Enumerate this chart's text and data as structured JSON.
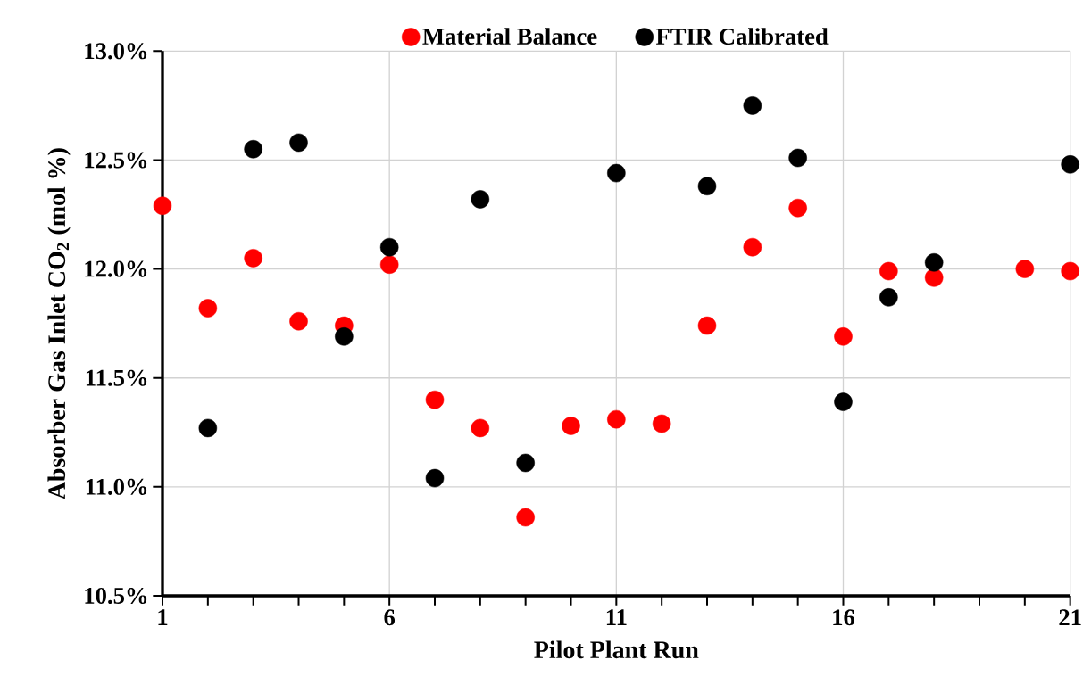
{
  "chart_data": {
    "type": "scatter",
    "xlabel": "Pilot Plant Run",
    "ylabel": "Absorber Gas Inlet CO$_{2}$  (mol %)",
    "x": [
      1,
      2,
      3,
      4,
      5,
      6,
      7,
      8,
      9,
      10,
      11,
      12,
      13,
      14,
      15,
      16,
      17,
      18,
      19,
      20,
      21
    ],
    "series": [
      {
        "name": "Material Balance",
        "color": "#ff0000",
        "values": [
          12.29,
          11.82,
          12.05,
          11.76,
          11.74,
          12.02,
          11.4,
          11.27,
          10.86,
          11.28,
          11.31,
          11.29,
          11.74,
          12.1,
          12.28,
          11.69,
          11.99,
          11.96,
          null,
          12.0,
          11.99
        ]
      },
      {
        "name": "FTIR Calibrated",
        "color": "#000000",
        "values": [
          null,
          11.27,
          12.55,
          12.58,
          11.69,
          12.1,
          11.04,
          12.32,
          11.11,
          null,
          12.44,
          null,
          12.38,
          12.75,
          12.51,
          11.39,
          11.87,
          12.03,
          null,
          null,
          12.48
        ]
      }
    ],
    "xlim": [
      1,
      21
    ],
    "xticks": [
      1,
      6,
      11,
      16,
      21
    ],
    "ylim": [
      10.5,
      13.0
    ],
    "yticks": [
      {
        "value": 10.5,
        "label": "10.5%"
      },
      {
        "value": 11.0,
        "label": "11.0%"
      },
      {
        "value": 11.5,
        "label": "11.5%"
      },
      {
        "value": 12.0,
        "label": "12.0%"
      },
      {
        "value": 12.5,
        "label": "12.5%"
      },
      {
        "value": 13.0,
        "label": "13.0%"
      }
    ],
    "grid": true,
    "legend": "top",
    "marker": "circle"
  }
}
